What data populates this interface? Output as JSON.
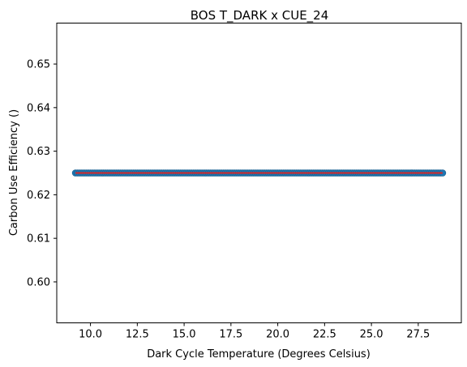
{
  "chart_data": {
    "type": "scatter",
    "title": "BOS T_DARK x CUE_24",
    "xlabel": "Dark Cycle Temperature (Degrees Celsius)",
    "ylabel": "Carbon Use Efficiency ()",
    "xlim": [
      8.2,
      29.8
    ],
    "ylim": [
      0.5906,
      0.6594
    ],
    "xticks": [
      10.0,
      12.5,
      15.0,
      17.5,
      20.0,
      22.5,
      25.0,
      27.5
    ],
    "xtick_labels": [
      "10.0",
      "12.5",
      "15.0",
      "17.5",
      "20.0",
      "22.5",
      "25.0",
      "27.5"
    ],
    "yticks": [
      0.6,
      0.61,
      0.62,
      0.63,
      0.64,
      0.65
    ],
    "ytick_labels": [
      "0.60",
      "0.61",
      "0.62",
      "0.63",
      "0.64",
      "0.65"
    ],
    "grid": false,
    "series": [
      {
        "kind": "scatter",
        "color": "#1f77b4",
        "x_start": 9.2,
        "x_end": 28.8,
        "x_step": 0.1,
        "y_constant": 0.625
      },
      {
        "kind": "line",
        "color": "#d62728",
        "x": [
          9.2,
          28.8
        ],
        "y": [
          0.625,
          0.625
        ]
      }
    ]
  }
}
